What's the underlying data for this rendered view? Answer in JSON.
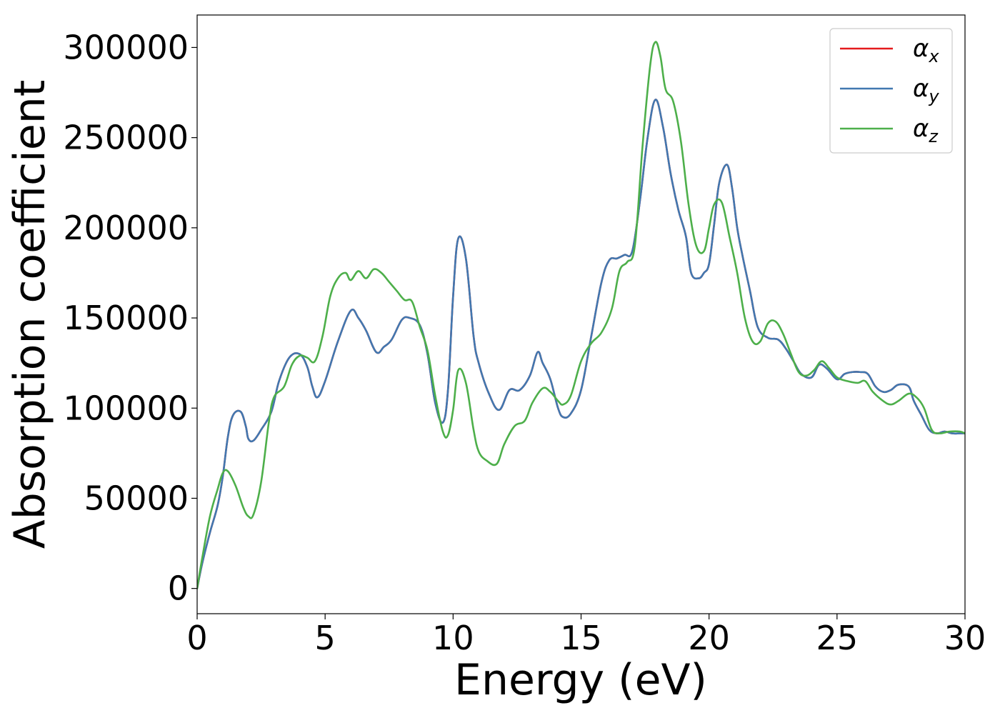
{
  "chart_data": {
    "type": "line",
    "xlabel": "Energy (eV)",
    "ylabel": "Absorption coefficient",
    "xlim": [
      0,
      30
    ],
    "ylim": [
      -14000,
      318000
    ],
    "x_ticks": [
      0,
      5,
      10,
      15,
      20,
      25,
      30
    ],
    "y_ticks": [
      0,
      50000,
      100000,
      150000,
      200000,
      250000,
      300000
    ],
    "x_tick_labels": [
      "0",
      "5",
      "10",
      "15",
      "20",
      "25",
      "30"
    ],
    "y_tick_labels": [
      "0",
      "50000",
      "100000",
      "150000",
      "200000",
      "250000",
      "300000"
    ],
    "grid": false,
    "legend_position": "top-right",
    "series": [
      {
        "name": "α",
        "subscript": "x",
        "color": "#e41a1c",
        "x": [
          0,
          0.2,
          0.5,
          0.8,
          1.0,
          1.2,
          1.4,
          1.7,
          1.9,
          2.0,
          2.2,
          2.5,
          2.9,
          3.2,
          3.6,
          4.0,
          4.3,
          4.5,
          4.7,
          5.0,
          5.5,
          6.0,
          6.3,
          6.6,
          7.0,
          7.3,
          7.6,
          8.0,
          8.3,
          8.7,
          9.0,
          9.3,
          9.6,
          9.8,
          10.0,
          10.2,
          10.5,
          10.8,
          11.0,
          11.4,
          11.8,
          12.2,
          12.6,
          13.0,
          13.3,
          13.5,
          13.8,
          14.1,
          14.3,
          14.6,
          15.0,
          15.4,
          15.8,
          16.1,
          16.4,
          16.7,
          17.0,
          17.3,
          17.6,
          17.9,
          18.2,
          18.5,
          18.8,
          19.1,
          19.3,
          19.6,
          19.8,
          20.0,
          20.2,
          20.4,
          20.7,
          20.9,
          21.1,
          21.3,
          21.6,
          21.9,
          22.3,
          22.7,
          23.0,
          23.3,
          23.6,
          24.0,
          24.3,
          24.6,
          25.0,
          25.3,
          25.6,
          25.9,
          26.2,
          26.5,
          26.8,
          27.1,
          27.4,
          27.8,
          28.0,
          28.3,
          28.6,
          28.9,
          29.2,
          29.5,
          29.8,
          30.0
        ],
        "y": [
          0,
          14000,
          31000,
          46000,
          62000,
          84000,
          96000,
          98000,
          90000,
          83000,
          82000,
          88000,
          98000,
          115000,
          128000,
          130000,
          123000,
          112000,
          106000,
          115000,
          137000,
          154000,
          150000,
          143000,
          131000,
          134000,
          138000,
          149000,
          150000,
          146000,
          130000,
          103000,
          92000,
          110000,
          162000,
          194000,
          183000,
          140000,
          125000,
          108000,
          99000,
          110000,
          110000,
          118000,
          131000,
          125000,
          116000,
          100000,
          95000,
          97000,
          110000,
          140000,
          170000,
          182000,
          183000,
          185000,
          187000,
          215000,
          250000,
          271000,
          256000,
          230000,
          210000,
          195000,
          175000,
          172000,
          175000,
          180000,
          202000,
          225000,
          235000,
          222000,
          200000,
          185000,
          165000,
          145000,
          139000,
          138000,
          133000,
          126000,
          119000,
          117000,
          124000,
          122000,
          116000,
          119000,
          120000,
          120000,
          119000,
          112000,
          109000,
          110000,
          113000,
          112000,
          104000,
          96000,
          88000,
          86000,
          87000,
          86000,
          86000,
          86000
        ]
      },
      {
        "name": "α",
        "subscript": "y",
        "color": "#4178b0",
        "x": [
          0,
          0.2,
          0.5,
          0.8,
          1.0,
          1.2,
          1.4,
          1.7,
          1.9,
          2.0,
          2.2,
          2.5,
          2.9,
          3.2,
          3.6,
          4.0,
          4.3,
          4.5,
          4.7,
          5.0,
          5.5,
          6.0,
          6.3,
          6.6,
          7.0,
          7.3,
          7.6,
          8.0,
          8.3,
          8.7,
          9.0,
          9.3,
          9.6,
          9.8,
          10.0,
          10.2,
          10.5,
          10.8,
          11.0,
          11.4,
          11.8,
          12.2,
          12.6,
          13.0,
          13.3,
          13.5,
          13.8,
          14.1,
          14.3,
          14.6,
          15.0,
          15.4,
          15.8,
          16.1,
          16.4,
          16.7,
          17.0,
          17.3,
          17.6,
          17.9,
          18.2,
          18.5,
          18.8,
          19.1,
          19.3,
          19.6,
          19.8,
          20.0,
          20.2,
          20.4,
          20.7,
          20.9,
          21.1,
          21.3,
          21.6,
          21.9,
          22.3,
          22.7,
          23.0,
          23.3,
          23.6,
          24.0,
          24.3,
          24.6,
          25.0,
          25.3,
          25.6,
          25.9,
          26.2,
          26.5,
          26.8,
          27.1,
          27.4,
          27.8,
          28.0,
          28.3,
          28.6,
          28.9,
          29.2,
          29.5,
          29.8,
          30.0
        ],
        "y": [
          0,
          14000,
          31000,
          46000,
          62000,
          84000,
          96000,
          98000,
          90000,
          83000,
          82000,
          88000,
          98000,
          115000,
          128000,
          130000,
          123000,
          112000,
          106000,
          115000,
          137000,
          154000,
          150000,
          143000,
          131000,
          134000,
          138000,
          149000,
          150000,
          146000,
          130000,
          103000,
          92000,
          110000,
          162000,
          194000,
          183000,
          140000,
          125000,
          108000,
          99000,
          110000,
          110000,
          118000,
          131000,
          125000,
          116000,
          100000,
          95000,
          97000,
          110000,
          140000,
          170000,
          182000,
          183000,
          185000,
          187000,
          215000,
          250000,
          271000,
          256000,
          230000,
          210000,
          195000,
          175000,
          172000,
          175000,
          180000,
          202000,
          225000,
          235000,
          222000,
          200000,
          185000,
          165000,
          145000,
          139000,
          138000,
          133000,
          126000,
          119000,
          117000,
          124000,
          122000,
          116000,
          119000,
          120000,
          120000,
          119000,
          112000,
          109000,
          110000,
          113000,
          112000,
          104000,
          96000,
          88000,
          86000,
          87000,
          86000,
          86000,
          86000
        ]
      },
      {
        "name": "α",
        "subscript": "z",
        "color": "#4daf4a",
        "x": [
          0,
          0.2,
          0.5,
          0.8,
          1.0,
          1.2,
          1.5,
          1.8,
          2.0,
          2.2,
          2.5,
          2.8,
          3.0,
          3.4,
          3.7,
          4.0,
          4.3,
          4.6,
          4.9,
          5.2,
          5.5,
          5.8,
          6.0,
          6.3,
          6.6,
          6.9,
          7.2,
          7.5,
          7.8,
          8.1,
          8.4,
          8.7,
          9.0,
          9.3,
          9.6,
          9.8,
          10.0,
          10.2,
          10.5,
          10.8,
          11.0,
          11.3,
          11.7,
          12.0,
          12.4,
          12.8,
          13.1,
          13.5,
          13.8,
          14.1,
          14.3,
          14.6,
          15.0,
          15.4,
          15.8,
          16.2,
          16.5,
          16.8,
          17.1,
          17.4,
          17.7,
          17.9,
          18.1,
          18.3,
          18.6,
          18.9,
          19.2,
          19.5,
          19.8,
          20.0,
          20.2,
          20.5,
          20.8,
          21.1,
          21.4,
          21.7,
          22.0,
          22.3,
          22.6,
          22.9,
          23.2,
          23.5,
          23.8,
          24.1,
          24.4,
          24.7,
          25.0,
          25.4,
          25.8,
          26.1,
          26.4,
          26.8,
          27.1,
          27.4,
          27.8,
          28.1,
          28.4,
          28.7,
          29.0,
          29.4,
          29.8,
          30.0
        ],
        "y": [
          0,
          17000,
          40000,
          55000,
          64000,
          65000,
          57000,
          45000,
          40000,
          41000,
          59000,
          92000,
          106000,
          112000,
          124000,
          129000,
          128000,
          126000,
          140000,
          162000,
          172000,
          175000,
          171000,
          176000,
          172000,
          177000,
          175000,
          170000,
          165000,
          160000,
          159000,
          145000,
          132000,
          107000,
          87000,
          85000,
          99000,
          121000,
          114000,
          88000,
          76000,
          71000,
          69000,
          80000,
          90000,
          93000,
          103000,
          111000,
          109000,
          104000,
          102000,
          107000,
          126000,
          136000,
          142000,
          155000,
          176000,
          181000,
          190000,
          245000,
          290000,
          303000,
          295000,
          277000,
          270000,
          248000,
          213000,
          190000,
          187000,
          200000,
          213000,
          214000,
          195000,
          175000,
          150000,
          137000,
          137000,
          147000,
          148000,
          141000,
          130000,
          120000,
          118000,
          121000,
          126000,
          122000,
          117000,
          115000,
          114000,
          115000,
          109000,
          104000,
          102000,
          104000,
          108000,
          106000,
          100000,
          88000,
          86000,
          87000,
          87000,
          86000
        ]
      }
    ]
  }
}
